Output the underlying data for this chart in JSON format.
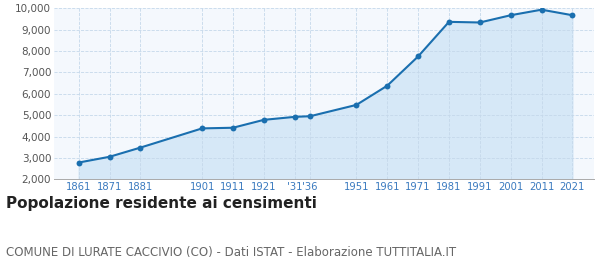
{
  "years": [
    1861,
    1871,
    1881,
    1901,
    1911,
    1921,
    1931,
    1936,
    1951,
    1961,
    1971,
    1981,
    1991,
    2001,
    2011,
    2021
  ],
  "population": [
    2780,
    3050,
    3480,
    4380,
    4410,
    4780,
    4920,
    4950,
    5480,
    6380,
    7750,
    9370,
    9340,
    9680,
    9940,
    9680
  ],
  "line_color": "#1a6faf",
  "fill_color": "#d6e8f7",
  "marker_color": "#1a6faf",
  "grid_color": "#c5d8ea",
  "background_color": "#f4f8fd",
  "tick_color": "#3a7abf",
  "ylim": [
    2000,
    10000
  ],
  "yticks": [
    2000,
    3000,
    4000,
    5000,
    6000,
    7000,
    8000,
    9000,
    10000
  ],
  "xlim_min": 1853,
  "xlim_max": 2028,
  "xtick_positions": [
    1861,
    1871,
    1881,
    1901,
    1911,
    1921,
    1931,
    1936,
    1951,
    1961,
    1971,
    1981,
    1991,
    2001,
    2011,
    2021
  ],
  "xtick_labels": [
    "1861",
    "1871",
    "1881",
    "1901",
    "1911",
    "1921",
    "'31",
    "'36",
    "1951",
    "1961",
    "1971",
    "1981",
    "1991",
    "2001",
    "2011",
    "2021"
  ],
  "title": "Popolazione residente ai censimenti",
  "subtitle": "COMUNE DI LURATE CACCIVIO (CO) - Dati ISTAT - Elaborazione TUTTITALIA.IT",
  "title_fontsize": 11,
  "subtitle_fontsize": 8.5
}
